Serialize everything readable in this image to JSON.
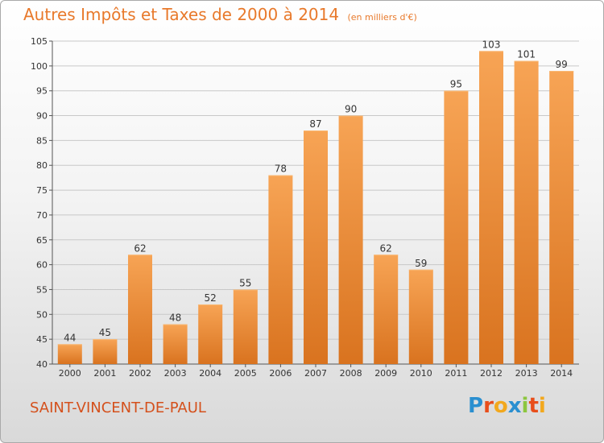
{
  "header": {
    "title": "Autres Impôts et Taxes de 2000 à 2014",
    "unit": "(en milliers d'€)"
  },
  "footer": {
    "commune": "SAINT-VINCENT-DE-PAUL"
  },
  "brand": {
    "text": "Proxiti",
    "letters": [
      {
        "ch": "P",
        "color": "#2a8fd0"
      },
      {
        "ch": "r",
        "color": "#e84e1b"
      },
      {
        "ch": "o",
        "color": "#f2a81d"
      },
      {
        "ch": "x",
        "color": "#2a8fd0"
      },
      {
        "ch": "i",
        "color": "#8cc63f"
      },
      {
        "ch": "t",
        "color": "#e84e1b"
      },
      {
        "ch": "i",
        "color": "#f2a81d"
      }
    ]
  },
  "colors": {
    "bar_top": "#f7a455",
    "bar_bottom": "#d9731f",
    "title": "#e8792b",
    "commune": "#d4501c",
    "grid": "#c8c8c8"
  },
  "chart_data": {
    "type": "bar",
    "title": "Autres Impôts et Taxes de 2000 à 2014",
    "subtitle": "(en milliers d'€)",
    "categories": [
      "2000",
      "2001",
      "2002",
      "2003",
      "2004",
      "2005",
      "2006",
      "2007",
      "2008",
      "2009",
      "2010",
      "2011",
      "2012",
      "2013",
      "2014"
    ],
    "values": [
      44,
      45,
      62,
      48,
      52,
      55,
      78,
      87,
      90,
      62,
      59,
      95,
      103,
      101,
      99
    ],
    "ylim": [
      40,
      105
    ],
    "yticks": [
      40,
      45,
      50,
      55,
      60,
      65,
      70,
      75,
      80,
      85,
      90,
      95,
      100,
      105
    ],
    "grid": true,
    "xlabel": "",
    "ylabel": ""
  }
}
